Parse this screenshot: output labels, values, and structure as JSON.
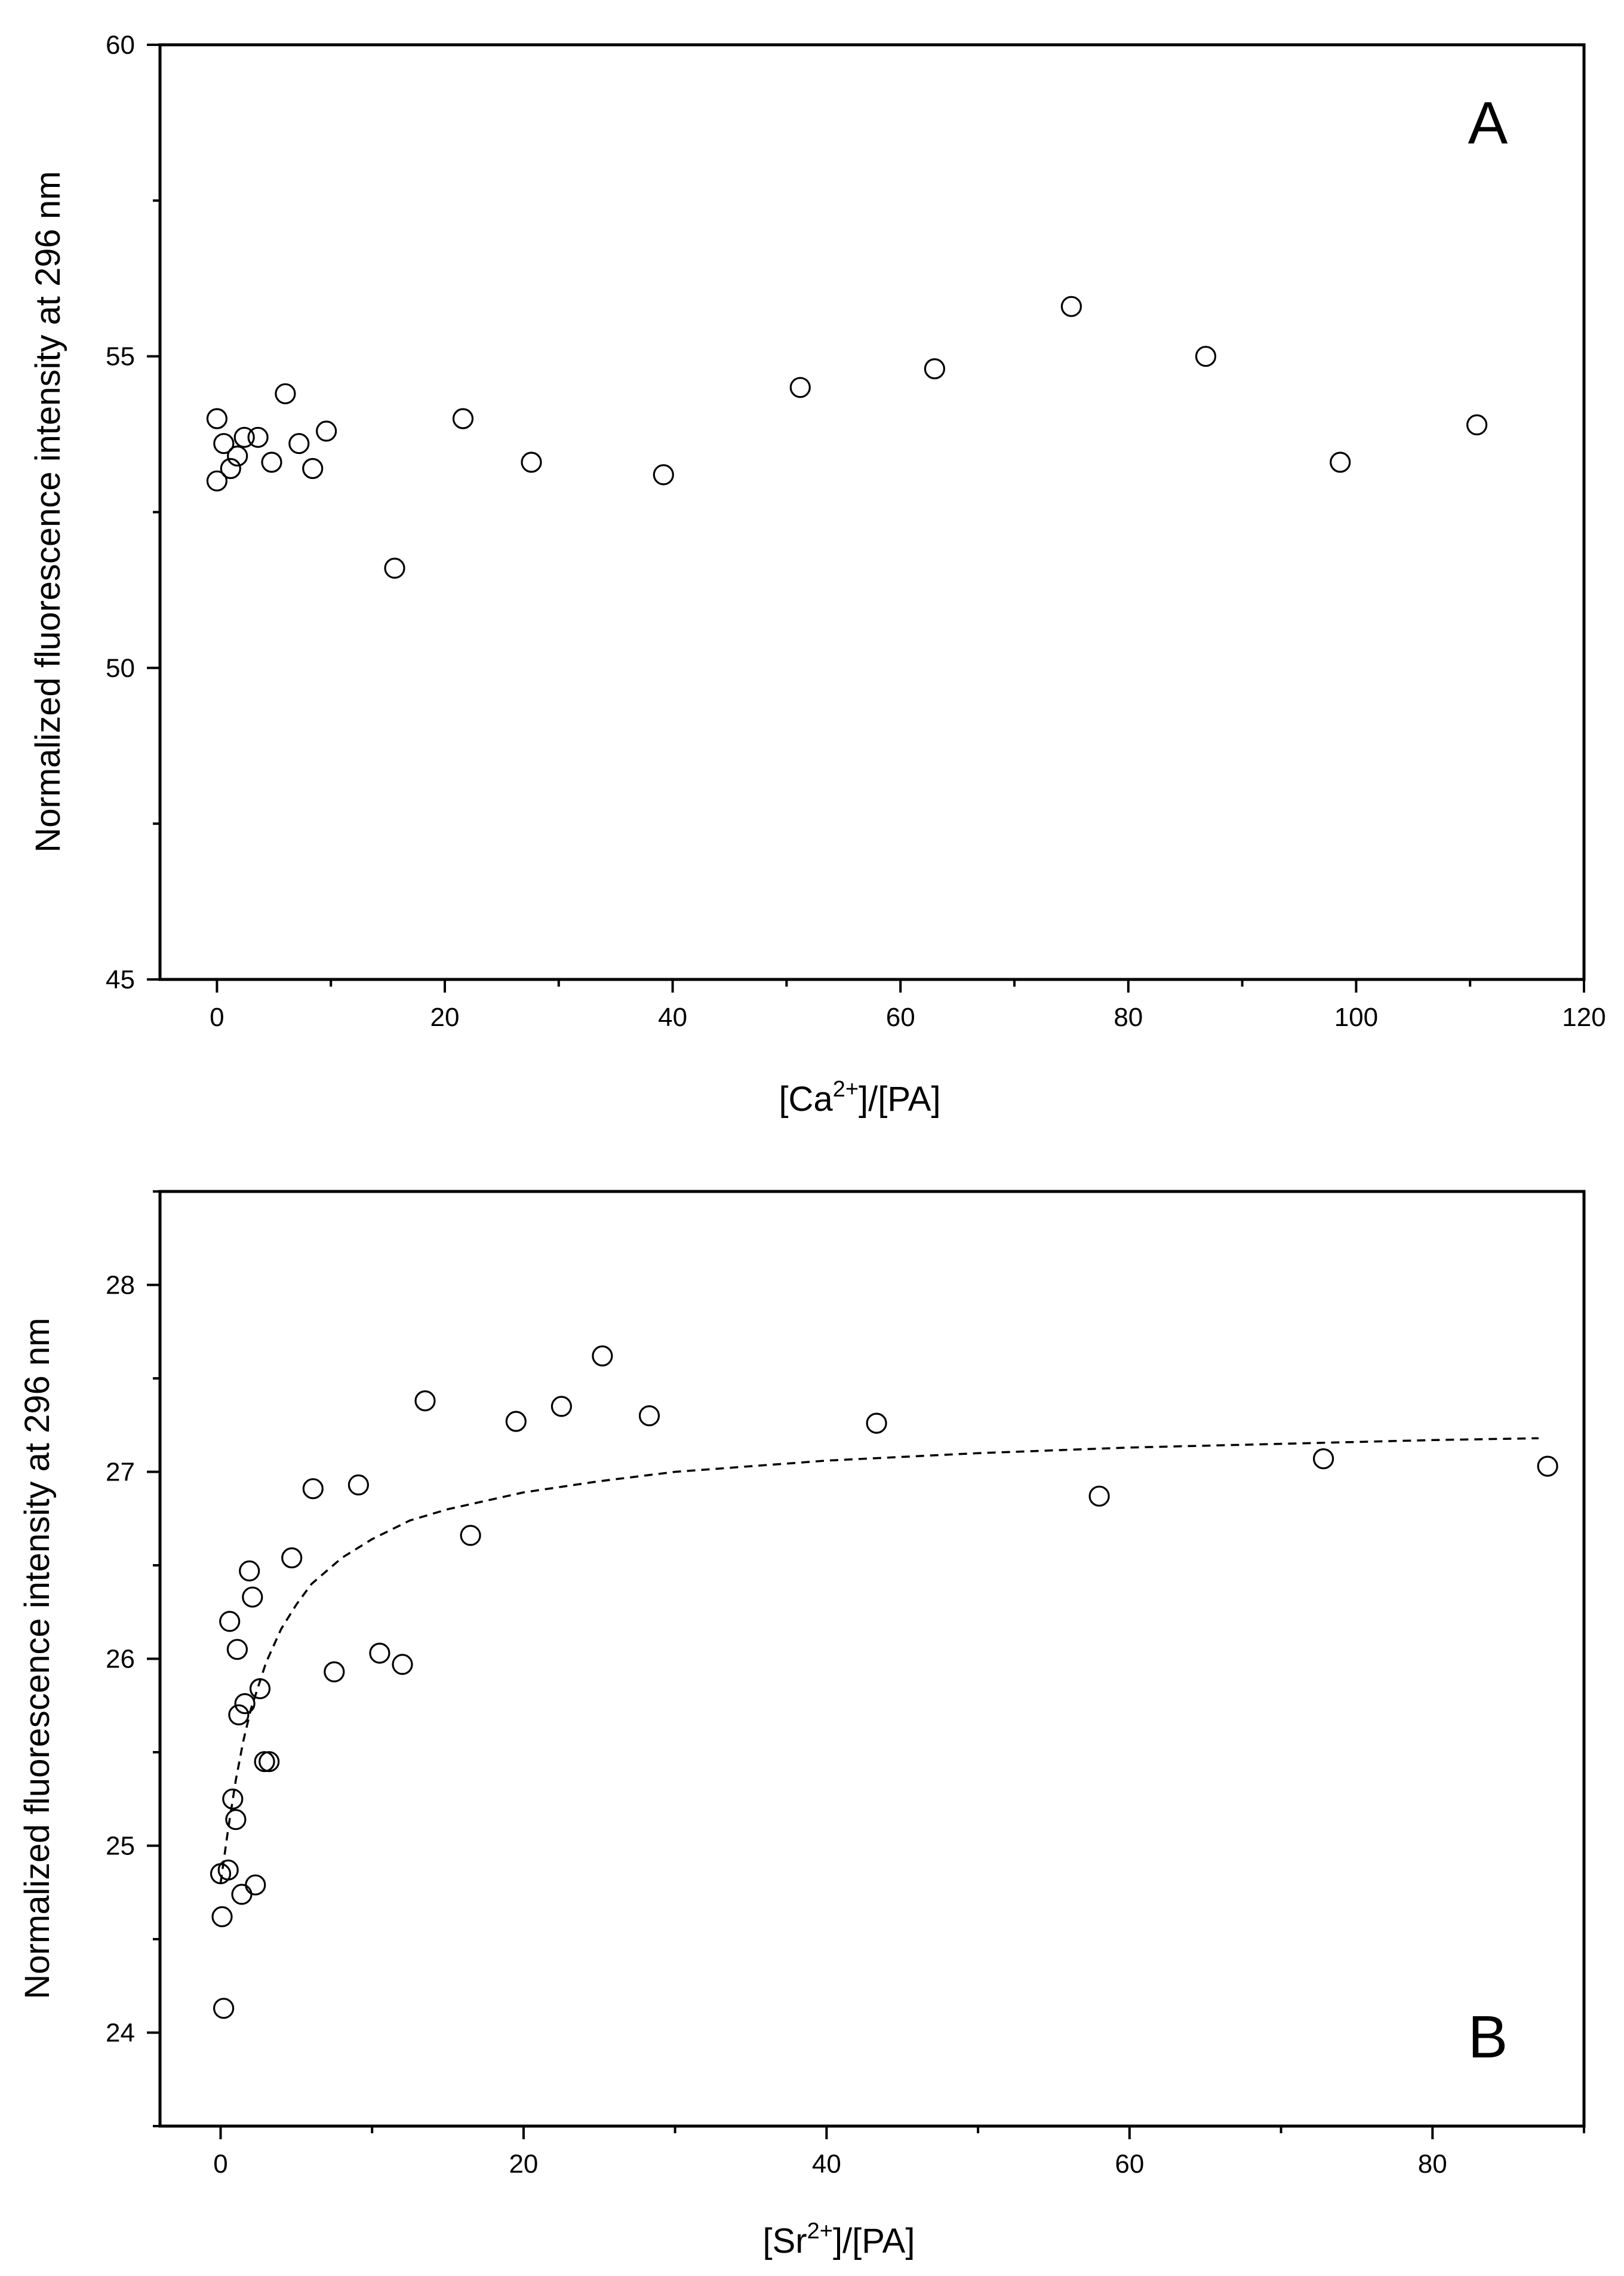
{
  "chart_data": [
    {
      "type": "scatter",
      "panel_label": "A",
      "ylabel": "Normalized fluorescence intensity at 296 nm",
      "xlabel": {
        "prefix": "[Ca",
        "sup": "2+",
        "suffix": "]/[PA]"
      },
      "xlim": [
        -5,
        120
      ],
      "ylim": [
        45,
        60
      ],
      "xticks": [
        "0",
        "20",
        "40",
        "60",
        "80",
        "100",
        "120"
      ],
      "yticks": [
        "45",
        "50",
        "55",
        "60"
      ],
      "grid": false,
      "series": [
        {
          "name": "data",
          "marker": "open-circle",
          "x": [
            0.0,
            0.0,
            0.6,
            1.2,
            1.8,
            2.4,
            3.6,
            4.8,
            6.0,
            7.2,
            8.4,
            9.6,
            15.6,
            21.6,
            27.6,
            39.2,
            51.2,
            63.0,
            75.0,
            86.8,
            98.6,
            110.6
          ],
          "y": [
            53.0,
            54.0,
            53.6,
            53.2,
            53.4,
            53.7,
            53.7,
            53.3,
            54.4,
            53.6,
            53.2,
            53.8,
            51.6,
            54.0,
            53.3,
            53.1,
            54.5,
            54.8,
            55.8,
            55.0,
            53.3,
            53.9
          ]
        }
      ]
    },
    {
      "type": "scatter",
      "panel_label": "B",
      "ylabel": "Normalized fluorescence intensity at 296 nm",
      "xlabel": {
        "prefix": "[Sr",
        "sup": "2+",
        "suffix": "]/[PA]"
      },
      "xlim": [
        -4,
        90
      ],
      "ylim": [
        23.5,
        28.5
      ],
      "xticks": [
        "0",
        "20",
        "40",
        "60",
        "80"
      ],
      "yticks": [
        "24",
        "25",
        "26",
        "27",
        "28"
      ],
      "grid": false,
      "series": [
        {
          "name": "data",
          "marker": "open-circle",
          "x": [
            0.0,
            0.1,
            0.2,
            0.5,
            0.6,
            0.8,
            1.0,
            1.1,
            1.2,
            1.4,
            1.6,
            1.9,
            2.1,
            2.3,
            2.6,
            2.9,
            3.2,
            4.7,
            6.1,
            7.5,
            9.1,
            10.5,
            12.0,
            13.5,
            16.5,
            19.5,
            22.5,
            25.2,
            28.3,
            43.3,
            58.0,
            72.8,
            87.6
          ],
          "y": [
            24.85,
            24.62,
            24.13,
            24.87,
            26.2,
            25.25,
            25.14,
            26.05,
            25.7,
            24.74,
            25.76,
            26.47,
            26.33,
            24.79,
            25.84,
            25.45,
            25.45,
            26.54,
            26.91,
            25.93,
            26.93,
            26.03,
            25.97,
            27.38,
            26.66,
            27.27,
            27.35,
            27.62,
            27.3,
            27.26,
            26.87,
            27.07,
            27.03
          ]
        },
        {
          "name": "fit",
          "style": "dashed-line",
          "x": [
            0.0,
            0.5,
            1.0,
            1.5,
            2.0,
            3.0,
            4.0,
            5.0,
            6.0,
            8.0,
            10.0,
            12.5,
            15.0,
            20.0,
            25.0,
            30.0,
            40.0,
            50.0,
            60.0,
            70.0,
            80.0,
            87.0
          ],
          "y": [
            24.8,
            25.09,
            25.35,
            25.56,
            25.73,
            25.98,
            26.16,
            26.29,
            26.4,
            26.54,
            26.64,
            26.74,
            26.8,
            26.89,
            26.95,
            27.0,
            27.06,
            27.1,
            27.13,
            27.15,
            27.17,
            27.18
          ]
        }
      ]
    }
  ]
}
